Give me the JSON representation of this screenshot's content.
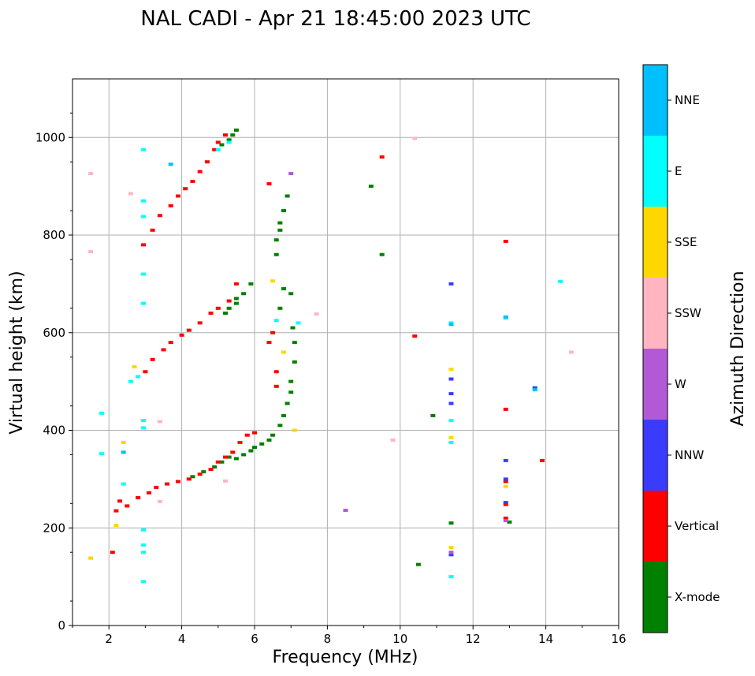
{
  "chart_data": {
    "type": "scatter",
    "title": "NAL CADI - Apr 21 18:45:00 2023 UTC",
    "xlabel": "Frequency (MHz)",
    "ylabel": "Virtual height (km)",
    "xlim": [
      1,
      16
    ],
    "ylim": [
      0,
      1120
    ],
    "xticks": [
      2,
      4,
      6,
      8,
      10,
      12,
      14,
      16
    ],
    "yticks": [
      0,
      200,
      400,
      600,
      800,
      1000
    ],
    "grid": true,
    "colorbar": {
      "title": "Azimuth Direction",
      "categories": [
        {
          "name": "X-mode",
          "color": "#008000"
        },
        {
          "name": "Vertical",
          "color": "#ff0000"
        },
        {
          "name": "NNW",
          "color": "#3b3bff"
        },
        {
          "name": "W",
          "color": "#b259d6"
        },
        {
          "name": "SSW",
          "color": "#ffb6c1"
        },
        {
          "name": "SSE",
          "color": "#ffd700"
        },
        {
          "name": "E",
          "color": "#00ffff"
        },
        {
          "name": "NNE",
          "color": "#00bfff"
        }
      ]
    },
    "series": [
      {
        "name": "X-mode",
        "points": [
          [
            4.3,
            305
          ],
          [
            4.6,
            315
          ],
          [
            4.9,
            325
          ],
          [
            5.1,
            335
          ],
          [
            5.3,
            345
          ],
          [
            5.5,
            342
          ],
          [
            5.7,
            350
          ],
          [
            5.9,
            358
          ],
          [
            6.0,
            365
          ],
          [
            6.2,
            372
          ],
          [
            6.4,
            380
          ],
          [
            6.5,
            390
          ],
          [
            6.7,
            410
          ],
          [
            6.8,
            430
          ],
          [
            6.9,
            455
          ],
          [
            7.0,
            478
          ],
          [
            7.0,
            500
          ],
          [
            7.1,
            540
          ],
          [
            7.1,
            580
          ],
          [
            7.05,
            610
          ],
          [
            6.7,
            650
          ],
          [
            6.8,
            690
          ],
          [
            7.0,
            680
          ],
          [
            5.2,
            640
          ],
          [
            5.3,
            650
          ],
          [
            5.5,
            660
          ],
          [
            5.5,
            670
          ],
          [
            5.7,
            680
          ],
          [
            5.9,
            700
          ],
          [
            6.6,
            760
          ],
          [
            6.6,
            790
          ],
          [
            6.7,
            810
          ],
          [
            6.7,
            825
          ],
          [
            6.8,
            850
          ],
          [
            6.9,
            880
          ],
          [
            5.1,
            985
          ],
          [
            5.3,
            995
          ],
          [
            5.4,
            1005
          ],
          [
            5.5,
            1015
          ],
          [
            9.2,
            900
          ],
          [
            9.5,
            760
          ],
          [
            10.5,
            125
          ],
          [
            10.9,
            430
          ],
          [
            11.4,
            210
          ],
          [
            13.0,
            212
          ]
        ]
      },
      {
        "name": "Vertical",
        "points": [
          [
            2.1,
            150
          ],
          [
            2.2,
            235
          ],
          [
            2.3,
            255
          ],
          [
            2.5,
            245
          ],
          [
            2.8,
            262
          ],
          [
            3.1,
            272
          ],
          [
            3.3,
            283
          ],
          [
            3.6,
            290
          ],
          [
            3.9,
            295
          ],
          [
            4.2,
            300
          ],
          [
            4.5,
            310
          ],
          [
            4.8,
            320
          ],
          [
            5.0,
            335
          ],
          [
            5.2,
            345
          ],
          [
            5.4,
            355
          ],
          [
            5.6,
            375
          ],
          [
            5.8,
            390
          ],
          [
            6.0,
            395
          ],
          [
            3.0,
            520
          ],
          [
            3.2,
            545
          ],
          [
            3.5,
            565
          ],
          [
            3.7,
            580
          ],
          [
            4.0,
            595
          ],
          [
            4.2,
            605
          ],
          [
            4.5,
            620
          ],
          [
            4.8,
            640
          ],
          [
            5.0,
            650
          ],
          [
            5.3,
            665
          ],
          [
            5.5,
            700
          ],
          [
            2.95,
            780
          ],
          [
            3.2,
            810
          ],
          [
            3.4,
            840
          ],
          [
            3.7,
            860
          ],
          [
            3.9,
            880
          ],
          [
            4.1,
            895
          ],
          [
            4.3,
            910
          ],
          [
            4.5,
            930
          ],
          [
            4.7,
            950
          ],
          [
            4.9,
            975
          ],
          [
            5.0,
            990
          ],
          [
            5.2,
            1005
          ],
          [
            6.4,
            905
          ],
          [
            6.6,
            490
          ],
          [
            6.6,
            520
          ],
          [
            6.4,
            580
          ],
          [
            6.5,
            600
          ],
          [
            9.5,
            960
          ],
          [
            10.4,
            593
          ],
          [
            12.9,
            787
          ],
          [
            12.9,
            443
          ],
          [
            12.9,
            295
          ],
          [
            12.9,
            248
          ],
          [
            12.9,
            220
          ],
          [
            13.9,
            338
          ]
        ]
      },
      {
        "name": "NNW",
        "points": [
          [
            11.4,
            700
          ],
          [
            11.4,
            505
          ],
          [
            11.4,
            475
          ],
          [
            11.4,
            455
          ],
          [
            11.4,
            145
          ],
          [
            12.9,
            338
          ],
          [
            12.9,
            300
          ],
          [
            12.9,
            252
          ],
          [
            13.7,
            487
          ]
        ]
      },
      {
        "name": "W",
        "points": [
          [
            7.0,
            926
          ],
          [
            8.5,
            236
          ],
          [
            11.4,
            150
          ],
          [
            12.9,
            215
          ]
        ]
      },
      {
        "name": "SSW",
        "points": [
          [
            1.5,
            926
          ],
          [
            1.5,
            766
          ],
          [
            2.6,
            885
          ],
          [
            3.4,
            418
          ],
          [
            3.4,
            254
          ],
          [
            5.2,
            296
          ],
          [
            7.7,
            638
          ],
          [
            9.8,
            380
          ],
          [
            10.4,
            998
          ],
          [
            14.7,
            560
          ]
        ]
      },
      {
        "name": "SSE",
        "points": [
          [
            1.5,
            138
          ],
          [
            2.2,
            205
          ],
          [
            2.4,
            375
          ],
          [
            2.7,
            530
          ],
          [
            6.5,
            706
          ],
          [
            6.8,
            560
          ],
          [
            7.1,
            400
          ],
          [
            11.4,
            525
          ],
          [
            11.4,
            385
          ],
          [
            11.4,
            160
          ],
          [
            12.9,
            285
          ]
        ]
      },
      {
        "name": "E",
        "points": [
          [
            1.8,
            435
          ],
          [
            1.8,
            352
          ],
          [
            2.4,
            290
          ],
          [
            2.6,
            500
          ],
          [
            2.8,
            510
          ],
          [
            2.95,
            975
          ],
          [
            2.95,
            870
          ],
          [
            2.95,
            838
          ],
          [
            2.95,
            720
          ],
          [
            2.95,
            660
          ],
          [
            2.95,
            420
          ],
          [
            2.95,
            405
          ],
          [
            2.95,
            196
          ],
          [
            2.95,
            165
          ],
          [
            2.95,
            150
          ],
          [
            2.95,
            90
          ],
          [
            5.0,
            975
          ],
          [
            5.3,
            990
          ],
          [
            6.6,
            625
          ],
          [
            7.2,
            620
          ],
          [
            11.4,
            620
          ],
          [
            11.4,
            420
          ],
          [
            11.4,
            375
          ],
          [
            11.4,
            100
          ],
          [
            12.9,
            630
          ],
          [
            14.4,
            705
          ]
        ]
      },
      {
        "name": "NNE",
        "points": [
          [
            3.7,
            945
          ],
          [
            2.4,
            355
          ],
          [
            11.4,
            617
          ],
          [
            12.9,
            632
          ],
          [
            13.7,
            483
          ]
        ]
      }
    ]
  }
}
